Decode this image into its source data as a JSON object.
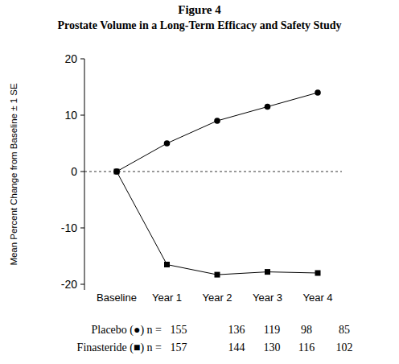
{
  "chart_data": {
    "type": "line",
    "title": "Figure 4",
    "subtitle": "Prostate Volume in a Long-Term Efficacy and Safety Study",
    "y_label": "Mean Percent Change from Baseline ± 1 SE",
    "categories": [
      "Baseline",
      "Year 1",
      "Year 2",
      "Year 3",
      "Year 4"
    ],
    "series": [
      {
        "name": "Placebo (●) n =",
        "color": "#000000",
        "marker": "circle",
        "line_style": "solid",
        "values": [
          0,
          5,
          9,
          11.5,
          14
        ],
        "n": [
          155,
          136,
          119,
          98,
          85
        ]
      },
      {
        "name": "Finasteride (■) n =",
        "color": "#000000",
        "marker": "square",
        "line_style": "solid",
        "values": [
          0,
          -16.5,
          -18.3,
          -17.8,
          -18
        ],
        "n": [
          157,
          144,
          130,
          116,
          102
        ]
      }
    ],
    "ylim": [
      -21,
      20
    ],
    "yticks": [
      -20,
      -10,
      0,
      10,
      20
    ],
    "grid": false
  }
}
